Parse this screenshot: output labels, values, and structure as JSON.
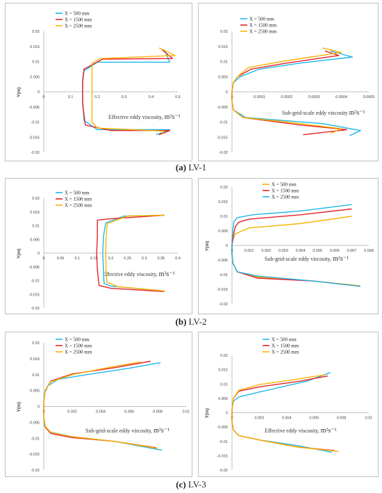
{
  "captions": [
    {
      "tag": "(a)",
      "name": "LV-1"
    },
    {
      "tag": "(b)",
      "name": "LV-2"
    },
    {
      "tag": "(c)",
      "name": "LV-3"
    }
  ],
  "colors": {
    "X500": "#1fb6e8",
    "X1500": "#e4202a",
    "X2500": "#f6b400",
    "axis": "#bfbfbf",
    "text": "#404040"
  },
  "chart_data": [
    {
      "id": "a-left",
      "type": "line",
      "xlabel": "Effective eddy viscosity,",
      "xlabel_unit": "m²s⁻¹",
      "ylabel": "Y(m)",
      "xlim": [
        0,
        0.5
      ],
      "ylim": [
        -0.02,
        0.02
      ],
      "xticks": [
        "0",
        "0.1",
        "0.2",
        "0.3",
        "0.4",
        "0.5"
      ],
      "yticks": [
        "0.02",
        "0.015",
        "0.01",
        "0.005",
        "0",
        "-0.005",
        "-0.01",
        "-0.015",
        "-0.02"
      ],
      "legend": [
        "X = 500   mm",
        "X = 1500 mm",
        "X = 2500 mm"
      ],
      "series": [
        {
          "name": "X = 500   mm",
          "color_key": "X500",
          "x": [
            0.45,
            0.47,
            0.2,
            0.15,
            0.145,
            0.145,
            0.145,
            0.15,
            0.2,
            0.47,
            0.42
          ],
          "y": [
            0.014,
            0.0098,
            0.0098,
            0.007,
            0.003,
            0,
            -0.003,
            -0.0095,
            -0.0125,
            -0.0125,
            -0.0142
          ]
        },
        {
          "name": "X = 1500 mm",
          "color_key": "X1500",
          "x": [
            0.44,
            0.48,
            0.22,
            0.15,
            0.145,
            0.145,
            0.145,
            0.155,
            0.25,
            0.47,
            0.43
          ],
          "y": [
            0.014,
            0.011,
            0.0108,
            0.0075,
            0.004,
            0,
            -0.004,
            -0.011,
            -0.0128,
            -0.0128,
            -0.0142
          ]
        },
        {
          "name": "X = 2500 mm",
          "color_key": "X2500",
          "x": [
            0.43,
            0.49,
            0.21,
            0.18,
            0.18,
            0.18,
            0.18,
            0.18,
            0.2,
            0.45,
            0.44
          ],
          "y": [
            0.0145,
            0.012,
            0.011,
            0.0095,
            0.006,
            0,
            -0.006,
            -0.01,
            -0.012,
            -0.013,
            -0.0138
          ]
        }
      ]
    },
    {
      "id": "a-right",
      "type": "line",
      "xlabel": "Sub-grid-scale  eddy viscosity",
      "xlabel_unit": "m²s⁻¹",
      "ylabel": "",
      "xlim": [
        0,
        0.0005
      ],
      "ylim": [
        -0.02,
        0.02
      ],
      "xticks": [
        "0",
        "0.0001",
        "0.0002",
        "0.0003",
        "0.0004",
        "0.0005"
      ],
      "yticks": [
        "0.02",
        "0.015",
        "0.01",
        "0.005",
        "0",
        "-0.005",
        "-0.01",
        "-0.015",
        "-0.02"
      ],
      "legend": [
        "X = 500   mm",
        "X = 1500 mm",
        "X = 2500 mm"
      ],
      "series": [
        {
          "name": "X = 500   mm",
          "color_key": "X500",
          "x": [
            0.00036,
            0.00044,
            0.00025,
            0.0001,
            3e-05,
            5e-06,
            0,
            0,
            5e-06,
            5e-05,
            0.00033,
            0.00047,
            0.00043
          ],
          "y": [
            0.0135,
            0.0115,
            0.0095,
            0.0075,
            0.005,
            0.003,
            0,
            -0.003,
            -0.006,
            -0.0085,
            -0.0105,
            -0.0128,
            -0.0145
          ]
        },
        {
          "name": "X = 1500 mm",
          "color_key": "X1500",
          "x": [
            0.00034,
            0.00039,
            0.0002,
            7e-05,
            2e-05,
            5e-06,
            0,
            0,
            5e-06,
            4e-05,
            0.00025,
            0.00042,
            0.00026
          ],
          "y": [
            0.0135,
            0.012,
            0.0095,
            0.0075,
            0.005,
            0.003,
            0,
            -0.003,
            -0.006,
            -0.0085,
            -0.011,
            -0.0125,
            -0.0142
          ]
        },
        {
          "name": "X = 2500 mm",
          "color_key": "X2500",
          "x": [
            0.00033,
            0.0004,
            0.00018,
            6e-05,
            2e-05,
            5e-06,
            0,
            0,
            5e-06,
            4e-05,
            0.0002,
            0.0004,
            0.00036
          ],
          "y": [
            0.0145,
            0.013,
            0.01,
            0.008,
            0.005,
            0.003,
            0,
            -0.003,
            -0.006,
            -0.0085,
            -0.01,
            -0.0122,
            -0.0138
          ]
        }
      ]
    },
    {
      "id": "b-left",
      "type": "line",
      "xlabel": "Effective  eddy viscosity,",
      "xlabel_unit": "m²s⁻¹",
      "ylabel": "Y(m)",
      "xlim": [
        0,
        0.4
      ],
      "ylim": [
        -0.02,
        0.02
      ],
      "xticks": [
        "0",
        "0.05",
        "0.1",
        "0.15",
        "0.2",
        "0.25",
        "0.3",
        "0.35",
        "0.4"
      ],
      "yticks": [
        "0.02",
        "0.015",
        "0.01",
        "0.005",
        "0",
        "-0.005",
        "-0.01",
        "-0.015",
        "-0.02"
      ],
      "legend": [
        "X = 500   mm",
        "X = 1500 mm",
        "X = 2500 mm"
      ],
      "series": [
        {
          "name": "X = 500   mm",
          "color_key": "X500",
          "x": [
            0.36,
            0.24,
            0.185,
            0.178,
            0.176,
            0.178,
            0.18,
            0.2,
            0.36
          ],
          "y": [
            0.0138,
            0.0135,
            0.011,
            0.006,
            0,
            -0.006,
            -0.011,
            -0.012,
            -0.0138
          ]
        },
        {
          "name": "X = 1500 mm",
          "color_key": "X1500",
          "x": [
            0.36,
            0.2,
            0.16,
            0.16,
            0.158,
            0.16,
            0.165,
            0.2,
            0.36
          ],
          "y": [
            0.0138,
            0.0125,
            0.012,
            0.006,
            0,
            -0.006,
            -0.0118,
            -0.0128,
            -0.014
          ]
        },
        {
          "name": "X = 2500 mm",
          "color_key": "X2500",
          "x": [
            0.36,
            0.25,
            0.19,
            0.186,
            0.185,
            0.186,
            0.188,
            0.22,
            0.36
          ],
          "y": [
            0.0138,
            0.0135,
            0.0108,
            0.006,
            0,
            -0.006,
            -0.0105,
            -0.0122,
            -0.0138
          ]
        }
      ]
    },
    {
      "id": "b-right",
      "type": "line",
      "xlabel": "Sub-grid-scale  eddy viscosity,",
      "xlabel_unit": "m²s⁻¹",
      "ylabel": "Y(m)",
      "xlim": [
        0,
        0.008
      ],
      "ylim": [
        -0.02,
        0.02
      ],
      "xticks": [
        "0",
        "0.001",
        "0.002",
        "0.003",
        "0.004",
        "0.005",
        "0.006",
        "0.007",
        "0.008"
      ],
      "yticks": [
        "0.02",
        "0.015",
        "0.01",
        "0.005",
        "0",
        "-0.005",
        "-0.01",
        "-0.015",
        "-0.02"
      ],
      "legend": [
        "X = 500   mm",
        "X = 1500 mm",
        "X = 2500 mm"
      ],
      "series": [
        {
          "name": "X = 500   mm",
          "color_key": "X2500",
          "x": [
            0.007,
            0.004,
            0.001,
            0.0002,
            5e-05,
            0,
            0,
            5e-05,
            0.0003,
            0.0015,
            0.0048,
            0.0075
          ],
          "y": [
            0.01,
            0.0075,
            0.006,
            0.004,
            0.002,
            0,
            -0.003,
            -0.006,
            -0.009,
            -0.0108,
            -0.0122,
            -0.0138
          ]
        },
        {
          "name": "X = 1500 mm",
          "color_key": "X1500",
          "x": [
            0.007,
            0.004,
            0.001,
            0.0004,
            0.0002,
            0.0001,
            5e-05,
            0,
            0,
            5e-05,
            0.0003,
            0.0015,
            0.0048,
            0.0075
          ],
          "y": [
            0.0125,
            0.0105,
            0.009,
            0.008,
            0.0065,
            0.004,
            0.002,
            0,
            -0.003,
            -0.006,
            -0.009,
            -0.0112,
            -0.0122,
            -0.014
          ]
        },
        {
          "name": "X = 2500 mm",
          "color_key": "X500",
          "x": [
            0.007,
            0.004,
            0.0012,
            0.0003,
            0.0001,
            5e-05,
            0,
            0,
            5e-05,
            0.0003,
            0.0015,
            0.0048,
            0.0075
          ],
          "y": [
            0.014,
            0.0118,
            0.0105,
            0.0095,
            0.008,
            0.005,
            0.002,
            -0.003,
            -0.006,
            -0.009,
            -0.0105,
            -0.0122,
            -0.014
          ]
        }
      ]
    },
    {
      "id": "c-left",
      "type": "line",
      "xlabel": "Sub-grid-scale  eddy viscosity,",
      "xlabel_unit": "m²s⁻¹",
      "ylabel": "Y(m)",
      "xlim": [
        0,
        0.01
      ],
      "ylim": [
        -0.02,
        0.02
      ],
      "xticks": [
        "0",
        "0.002",
        "0.004",
        "0.006",
        "0.008",
        "0.01"
      ],
      "yticks": [
        "0.02",
        "0.015",
        "0.01",
        "0.005",
        "0",
        "-0.005",
        "-0.01",
        "-0.015",
        "-0.02"
      ],
      "legend": [
        "X = 500   mm",
        "X = 1500 mm",
        "X = 2500 mm"
      ],
      "series": [
        {
          "name": "X = 500   mm",
          "color_key": "X500",
          "x": [
            0.0082,
            0.006,
            0.003,
            0.001,
            0.0003,
            5e-05,
            0,
            0,
            5e-05,
            0.0004,
            0.002,
            0.005,
            0.0083
          ],
          "y": [
            0.0138,
            0.012,
            0.01,
            0.0085,
            0.0065,
            0.004,
            0.001,
            -0.003,
            -0.006,
            -0.008,
            -0.0095,
            -0.011,
            -0.0138
          ]
        },
        {
          "name": "X = 1500 mm",
          "color_key": "X1500",
          "x": [
            0.0075,
            0.005,
            0.002,
            0.0005,
            0.0001,
            0,
            0,
            0.0001,
            0.0005,
            0.002,
            0.005,
            0.0079
          ],
          "y": [
            0.0142,
            0.0122,
            0.0102,
            0.008,
            0.005,
            0.001,
            -0.003,
            -0.0065,
            -0.0085,
            -0.0098,
            -0.011,
            -0.013
          ]
        },
        {
          "name": "X = 2500 mm",
          "color_key": "X2500",
          "x": [
            0.0068,
            0.0045,
            0.002,
            0.0005,
            0.0001,
            0,
            0,
            0.0001,
            0.0005,
            0.002,
            0.005,
            0.008
          ],
          "y": [
            0.014,
            0.0122,
            0.01,
            0.0078,
            0.005,
            0.001,
            -0.003,
            -0.0062,
            -0.0082,
            -0.0095,
            -0.011,
            -0.0132
          ]
        }
      ]
    },
    {
      "id": "c-right",
      "type": "line",
      "xlabel": "Effective  eddy viscosity,",
      "xlabel_unit": "m²s⁻¹",
      "ylabel": "Y(m)",
      "xlim": [
        0,
        0.01
      ],
      "ylim": [
        -0.02,
        0.02
      ],
      "xticks": [
        "0",
        "0.002",
        "0.004",
        "0.006",
        "0.008",
        "0.01"
      ],
      "yticks": [
        "0.02",
        "0.015",
        "0.01",
        "0.005",
        "0",
        "-0.005",
        "-0.01",
        "-0.015",
        "-0.02"
      ],
      "legend": [
        "X = 500   mm",
        "X = 1500 mm",
        "X = 2500 mm"
      ],
      "series": [
        {
          "name": "X = 500   mm",
          "color_key": "X500",
          "x": [
            0.0072,
            0.0055,
            0.002,
            0.0005,
            0.0001,
            0,
            0,
            0.0001,
            0.0005,
            0.002,
            0.0048,
            0.0073
          ],
          "y": [
            0.014,
            0.011,
            0.0072,
            0.0055,
            0.004,
            0.001,
            -0.003,
            -0.006,
            -0.008,
            -0.0095,
            -0.0115,
            -0.0138
          ]
        },
        {
          "name": "X = 1500 mm",
          "color_key": "X1500",
          "x": [
            0.007,
            0.005,
            0.002,
            0.0005,
            0.0001,
            0,
            0,
            0.0001,
            0.0005,
            0.002,
            0.0048,
            0.0075
          ],
          "y": [
            0.0128,
            0.011,
            0.009,
            0.0075,
            0.005,
            0.001,
            -0.003,
            -0.006,
            -0.008,
            -0.0095,
            -0.012,
            -0.0132
          ]
        },
        {
          "name": "X = 2500 mm",
          "color_key": "X2500",
          "x": [
            0.0068,
            0.0045,
            0.002,
            0.0005,
            0.0001,
            0,
            0,
            0.0001,
            0.0005,
            0.002,
            0.0048,
            0.0078
          ],
          "y": [
            0.0132,
            0.0115,
            0.0098,
            0.0078,
            0.005,
            0.001,
            -0.003,
            -0.006,
            -0.008,
            -0.0095,
            -0.012,
            -0.0135
          ]
        }
      ]
    }
  ]
}
